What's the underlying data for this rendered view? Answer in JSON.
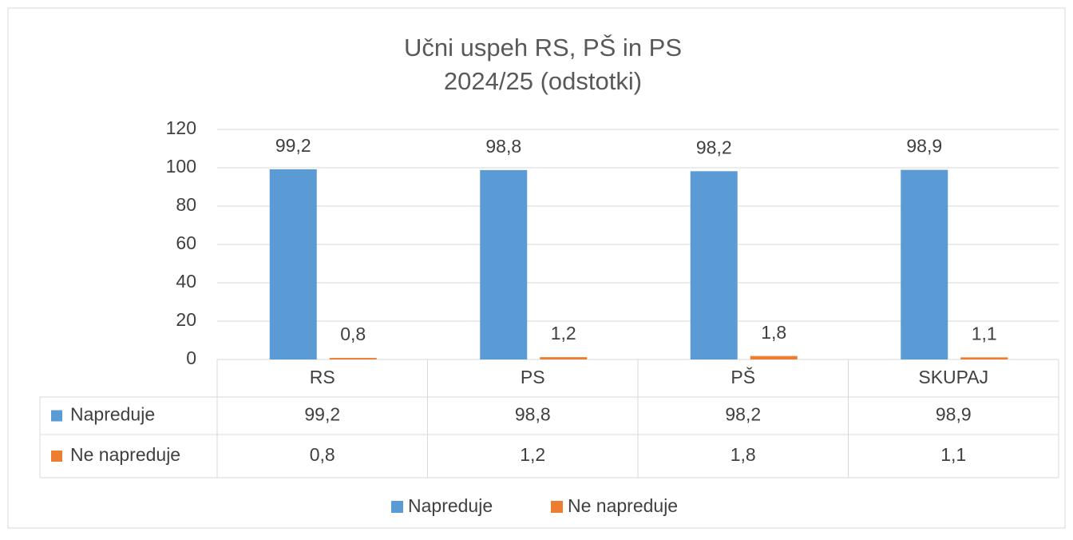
{
  "chart_data": {
    "type": "bar",
    "title": "Učni uspeh RS, PŠ in PS",
    "subtitle": "2024/25 (odstotki)",
    "categories": [
      "RS",
      "PS",
      "PŠ",
      "SKUPAJ"
    ],
    "series": [
      {
        "name": "Napreduje",
        "color": "#5b9bd5",
        "values": [
          99.2,
          98.8,
          98.2,
          98.9
        ],
        "value_labels": [
          "99,2",
          "98,8",
          "98,2",
          "98,9"
        ]
      },
      {
        "name": "Ne napreduje",
        "color": "#ed7d31",
        "values": [
          0.8,
          1.2,
          1.8,
          1.1
        ],
        "value_labels": [
          "0,8",
          "1,2",
          "1,8",
          "1,1"
        ]
      }
    ],
    "ylim": [
      0,
      120
    ],
    "yticks": [
      0,
      20,
      40,
      60,
      80,
      100,
      120
    ],
    "grid": true,
    "legend": "bottom"
  }
}
